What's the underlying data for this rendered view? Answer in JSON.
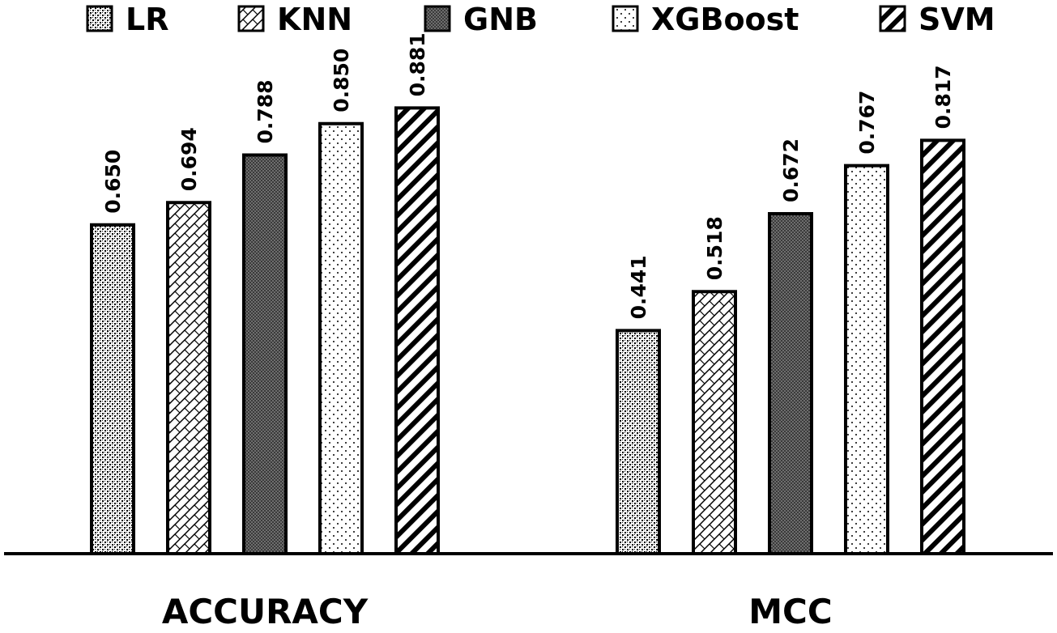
{
  "chart_data": {
    "type": "bar",
    "title": "",
    "xlabel": "",
    "ylabel": "",
    "ylim": [
      0,
      1
    ],
    "grid": false,
    "legend_position": "top",
    "categories": [
      "ACCURACY",
      "MCC"
    ],
    "series": [
      {
        "name": "LR",
        "values": [
          0.65,
          0.441
        ],
        "labels": [
          "0.650",
          "0.441"
        ],
        "pattern": "dots-dense"
      },
      {
        "name": "KNN",
        "values": [
          0.694,
          0.518
        ],
        "labels": [
          "0.694",
          "0.518"
        ],
        "pattern": "crosshatch-diagonal"
      },
      {
        "name": "GNB",
        "values": [
          0.788,
          0.672
        ],
        "labels": [
          "0.788",
          "0.672"
        ],
        "pattern": "fine-grid-dark"
      },
      {
        "name": "XGBoost",
        "values": [
          0.85,
          0.767
        ],
        "labels": [
          "0.850",
          "0.767"
        ],
        "pattern": "sparse-dots"
      },
      {
        "name": "SVM",
        "values": [
          0.881,
          0.817
        ],
        "labels": [
          "0.881",
          "0.817"
        ],
        "pattern": "diagonal-stripes"
      }
    ],
    "colors": {
      "bar_stroke": "#000000",
      "background": "#ffffff",
      "axis": "#000000"
    }
  }
}
